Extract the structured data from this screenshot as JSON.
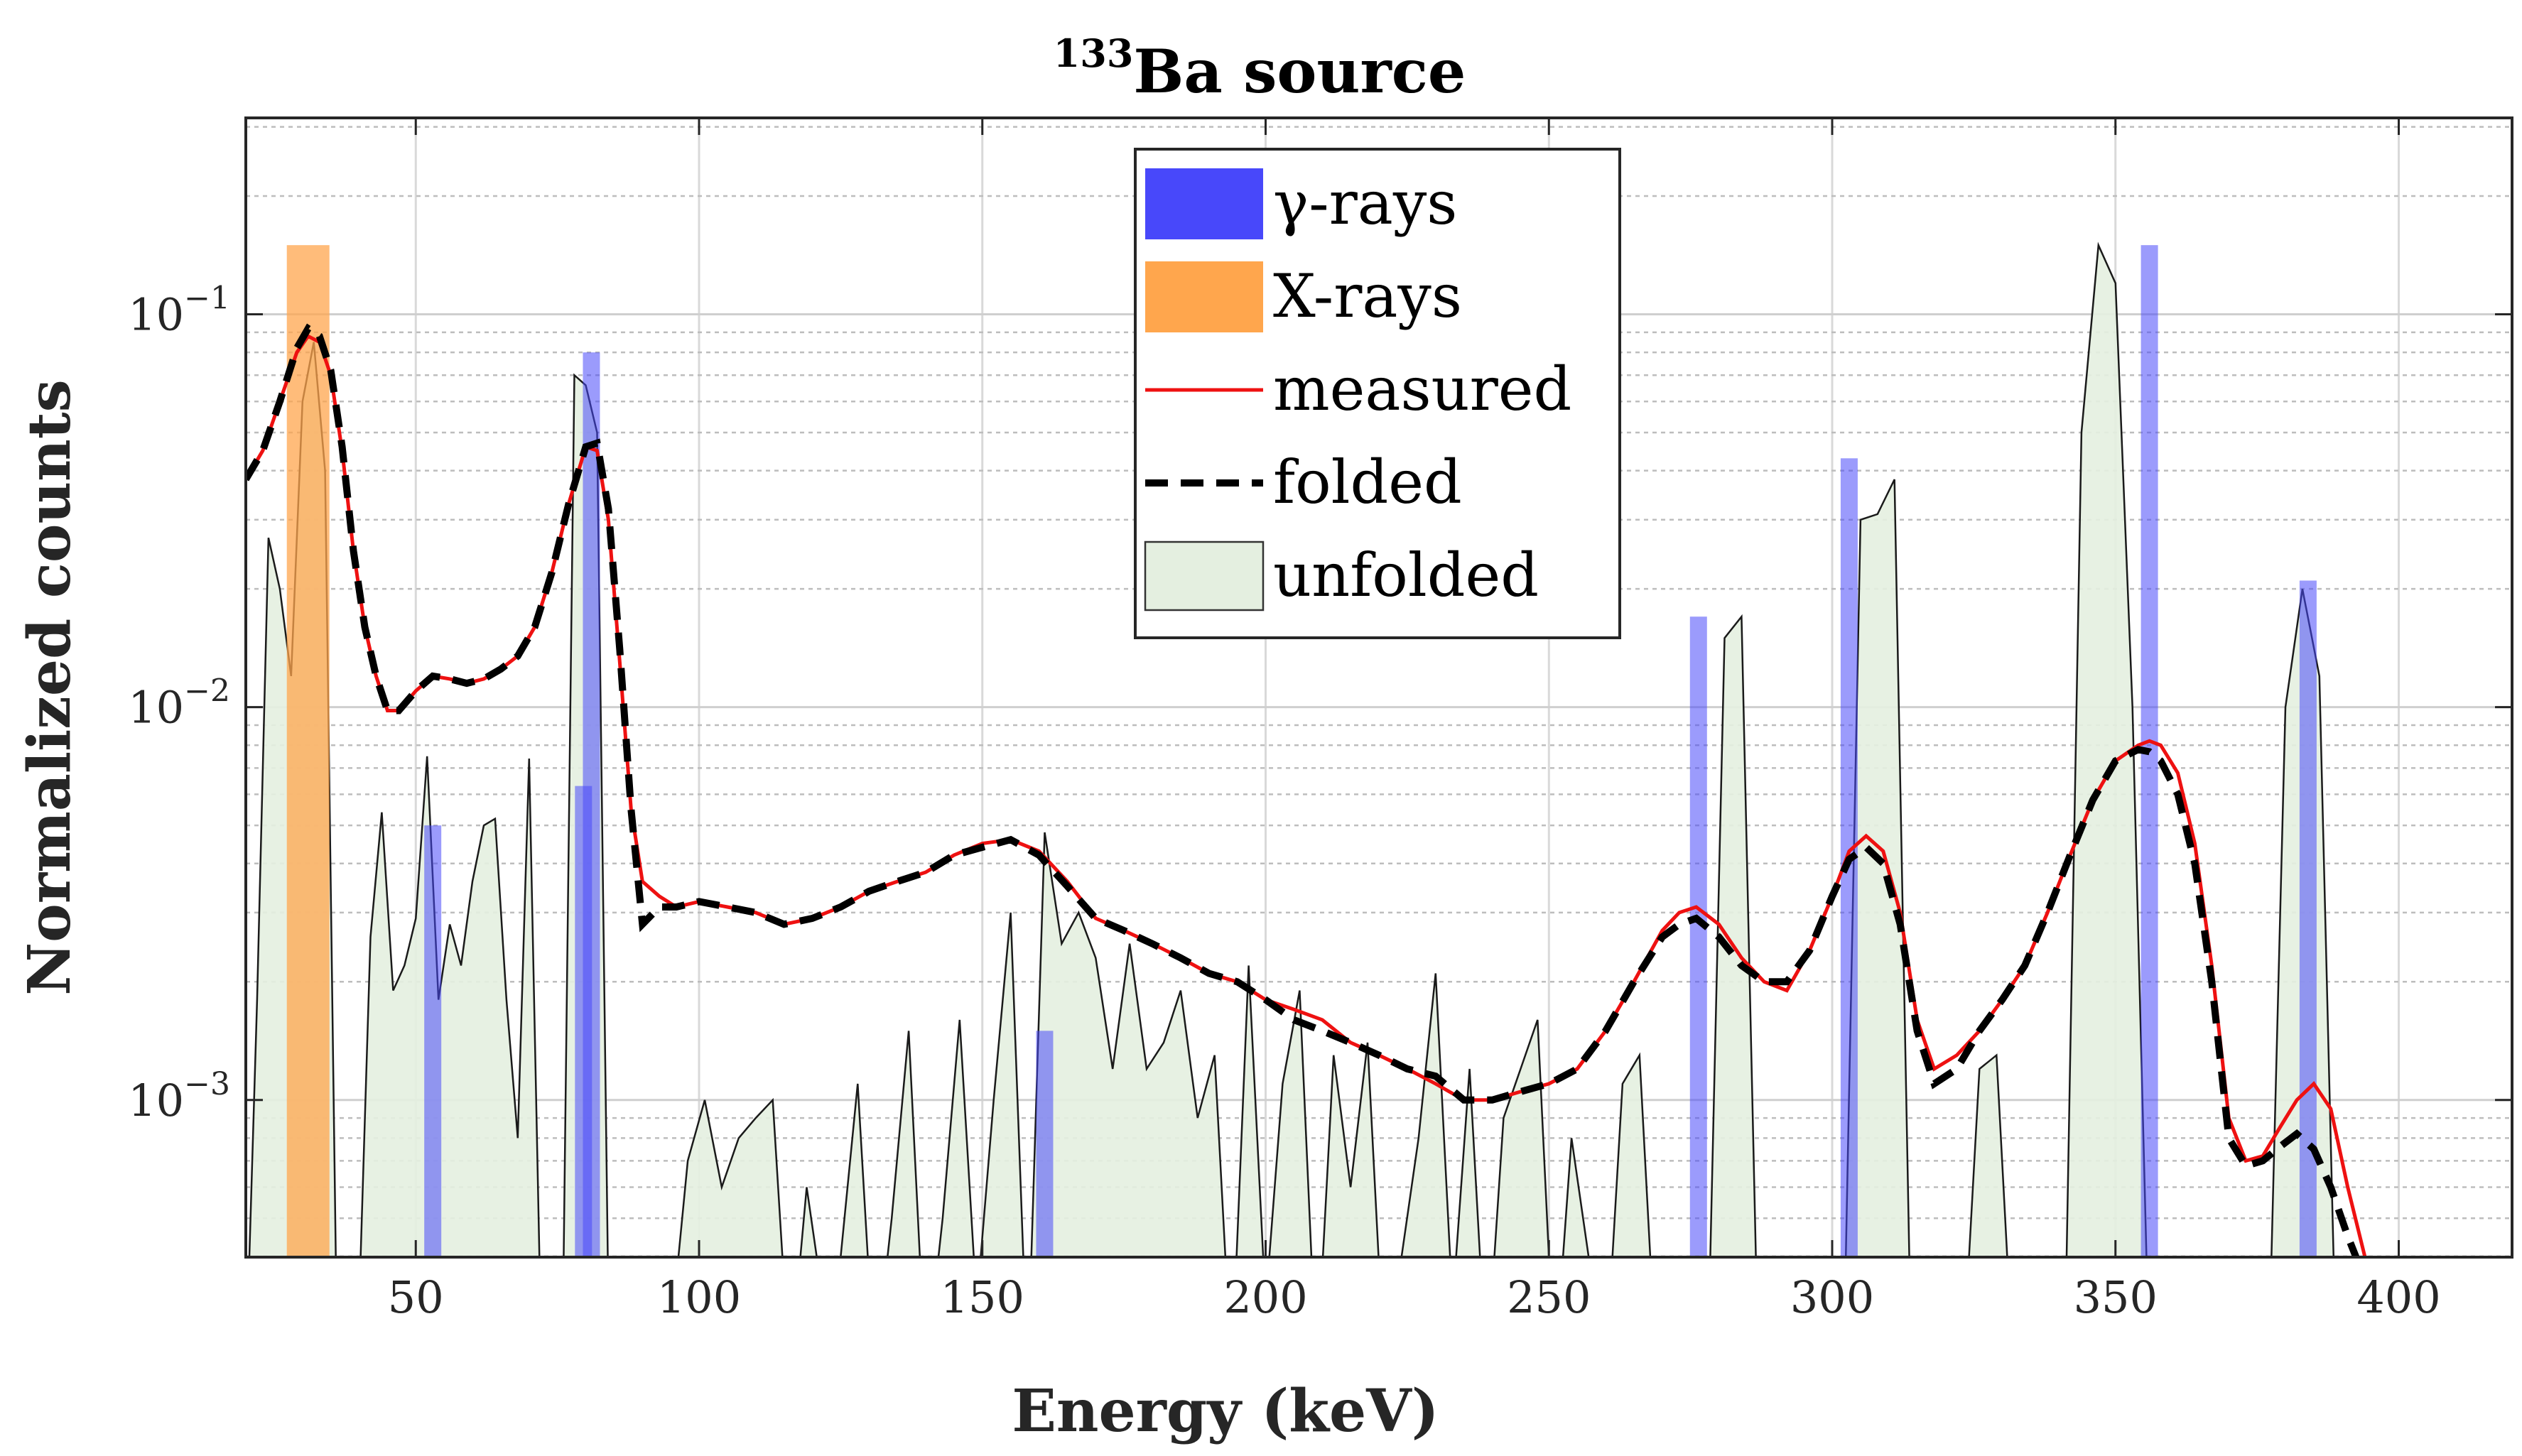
{
  "chart_data": {
    "type": "area",
    "title": "Ba source",
    "title_superscript": "133",
    "xlabel": "Energy (keV)",
    "ylabel": "Normalized counts",
    "xlim": [
      20,
      420
    ],
    "ylim_log10": [
      -3.4,
      -0.5
    ],
    "x_ticks": [
      50,
      100,
      150,
      200,
      250,
      300,
      350,
      400
    ],
    "x_tick_labels": [
      "50",
      "100",
      "150",
      "200",
      "250",
      "300",
      "350",
      "400"
    ],
    "y_ticks": [
      {
        "value": 0.1,
        "base": "10",
        "exp": "−1"
      },
      {
        "value": 0.01,
        "base": "10",
        "exp": "−2"
      },
      {
        "value": 0.001,
        "base": "10",
        "exp": "−3"
      }
    ],
    "grid": true,
    "legend_position": "top-center",
    "legend": [
      {
        "key": "gamma",
        "label": "γ-rays",
        "style": "bar",
        "color": "#4848fa"
      },
      {
        "key": "xray",
        "label": "X-rays",
        "style": "bar",
        "color": "#ffa64d"
      },
      {
        "key": "measured",
        "label": "measured",
        "style": "line",
        "color": "#ee1111"
      },
      {
        "key": "folded",
        "label": "folded",
        "style": "dashed",
        "color": "#000000"
      },
      {
        "key": "unfolded",
        "label": "unfolded",
        "style": "area",
        "color": "#e4efe0"
      }
    ],
    "gamma_lines": [
      {
        "x": 53,
        "y": 0.005
      },
      {
        "x": 79.6,
        "y": 0.0063
      },
      {
        "x": 81,
        "y": 0.08
      },
      {
        "x": 161,
        "y": 0.0015
      },
      {
        "x": 276.4,
        "y": 0.017
      },
      {
        "x": 303,
        "y": 0.043
      },
      {
        "x": 356,
        "y": 0.15
      },
      {
        "x": 384,
        "y": 0.021
      }
    ],
    "xray_lines": [
      {
        "x": 31,
        "y": 0.15
      }
    ],
    "measured": {
      "x": [
        20,
        23,
        26,
        29,
        31,
        33,
        35,
        37,
        39,
        41,
        43,
        45,
        47,
        50,
        53,
        56,
        59,
        62,
        65,
        68,
        71,
        74,
        77,
        80,
        82,
        84,
        86,
        88,
        90,
        93,
        96,
        100,
        105,
        110,
        115,
        120,
        125,
        130,
        135,
        140,
        145,
        150,
        155,
        160,
        165,
        170,
        175,
        180,
        185,
        190,
        195,
        200,
        205,
        210,
        215,
        220,
        225,
        230,
        235,
        240,
        245,
        250,
        255,
        260,
        265,
        270,
        273,
        276,
        280,
        284,
        288,
        292,
        296,
        300,
        303,
        306,
        309,
        312,
        315,
        318,
        322,
        326,
        330,
        334,
        338,
        342,
        346,
        350,
        354,
        356,
        358,
        361,
        364,
        367,
        370,
        373,
        376,
        379,
        382,
        385,
        388,
        391,
        394
      ],
      "y": [
        0.038,
        0.045,
        0.06,
        0.08,
        0.088,
        0.085,
        0.07,
        0.045,
        0.025,
        0.016,
        0.012,
        0.0098,
        0.0098,
        0.011,
        0.012,
        0.0118,
        0.0115,
        0.0118,
        0.0125,
        0.0135,
        0.016,
        0.022,
        0.033,
        0.046,
        0.045,
        0.03,
        0.013,
        0.0055,
        0.0036,
        0.0033,
        0.0031,
        0.0032,
        0.0031,
        0.003,
        0.0028,
        0.0029,
        0.0031,
        0.0034,
        0.0036,
        0.0038,
        0.0042,
        0.0045,
        0.0046,
        0.0043,
        0.0036,
        0.0029,
        0.0027,
        0.0025,
        0.0023,
        0.0021,
        0.002,
        0.0018,
        0.0017,
        0.0016,
        0.0014,
        0.0013,
        0.0012,
        0.0011,
        0.001,
        0.001,
        0.00105,
        0.0011,
        0.0012,
        0.0015,
        0.002,
        0.0027,
        0.003,
        0.0031,
        0.0028,
        0.0023,
        0.002,
        0.0019,
        0.0024,
        0.0033,
        0.0043,
        0.0047,
        0.0043,
        0.003,
        0.0016,
        0.0012,
        0.0013,
        0.0015,
        0.0018,
        0.0022,
        0.003,
        0.0042,
        0.0058,
        0.0073,
        0.008,
        0.0082,
        0.008,
        0.0068,
        0.0045,
        0.0022,
        0.0009,
        0.0007,
        0.00072,
        0.00085,
        0.001,
        0.0011,
        0.00095,
        0.0006,
        0.0004
      ]
    },
    "folded": {
      "x": [
        20,
        23,
        26,
        29,
        31,
        33,
        35,
        37,
        39,
        41,
        43,
        45,
        47,
        50,
        53,
        56,
        59,
        62,
        65,
        68,
        71,
        74,
        77,
        80,
        82,
        84,
        86,
        88,
        90,
        93,
        96,
        100,
        105,
        110,
        115,
        120,
        125,
        130,
        135,
        140,
        145,
        150,
        155,
        160,
        165,
        170,
        175,
        180,
        185,
        190,
        195,
        200,
        205,
        210,
        215,
        220,
        225,
        230,
        235,
        240,
        245,
        250,
        255,
        260,
        265,
        270,
        273,
        276,
        280,
        284,
        288,
        292,
        296,
        300,
        303,
        306,
        309,
        312,
        315,
        318,
        322,
        326,
        330,
        334,
        338,
        342,
        346,
        350,
        354,
        356,
        358,
        361,
        364,
        367,
        370,
        373,
        376,
        379,
        382,
        385,
        388,
        391,
        394
      ],
      "y": [
        0.038,
        0.045,
        0.06,
        0.082,
        0.092,
        0.088,
        0.072,
        0.046,
        0.025,
        0.016,
        0.012,
        0.0098,
        0.0098,
        0.011,
        0.012,
        0.0118,
        0.0115,
        0.0118,
        0.0125,
        0.0135,
        0.016,
        0.022,
        0.033,
        0.046,
        0.047,
        0.032,
        0.014,
        0.0055,
        0.0028,
        0.0031,
        0.0031,
        0.0032,
        0.0031,
        0.003,
        0.0028,
        0.0029,
        0.0031,
        0.0034,
        0.0036,
        0.0038,
        0.0042,
        0.0044,
        0.0046,
        0.0042,
        0.0035,
        0.0029,
        0.0027,
        0.0025,
        0.0023,
        0.0021,
        0.002,
        0.0018,
        0.0016,
        0.0015,
        0.0014,
        0.0013,
        0.0012,
        0.00115,
        0.001,
        0.001,
        0.00105,
        0.0011,
        0.0012,
        0.0015,
        0.002,
        0.0026,
        0.0028,
        0.0029,
        0.0026,
        0.0022,
        0.002,
        0.002,
        0.0024,
        0.0033,
        0.0041,
        0.0044,
        0.004,
        0.0028,
        0.0015,
        0.0011,
        0.0012,
        0.0015,
        0.0018,
        0.0022,
        0.003,
        0.0042,
        0.0058,
        0.0073,
        0.0078,
        0.0077,
        0.0073,
        0.006,
        0.004,
        0.002,
        0.0008,
        0.00068,
        0.0007,
        0.00076,
        0.00082,
        0.00075,
        0.0006,
        0.00045,
        0.00035
      ]
    },
    "unfolded": {
      "x": [
        20,
        22,
        24,
        26,
        28,
        30,
        32,
        34,
        36,
        38,
        40,
        42,
        44,
        46,
        48,
        50,
        52,
        54,
        56,
        58,
        60,
        62,
        64,
        66,
        68,
        70,
        72,
        74,
        76,
        78,
        80,
        82,
        84,
        86,
        88,
        90,
        92,
        95,
        98,
        101,
        104,
        107,
        110,
        113,
        116,
        119,
        122,
        125,
        128,
        131,
        134,
        137,
        140,
        143,
        146,
        149,
        152,
        155,
        158,
        161,
        164,
        167,
        170,
        173,
        176,
        179,
        182,
        185,
        188,
        191,
        194,
        197,
        200,
        203,
        206,
        209,
        212,
        215,
        218,
        221,
        224,
        227,
        230,
        233,
        236,
        239,
        242,
        245,
        248,
        251,
        254,
        257,
        260,
        263,
        266,
        269,
        272,
        275,
        278,
        281,
        284,
        287,
        290,
        293,
        296,
        299,
        302,
        305,
        308,
        311,
        314,
        317,
        320,
        323,
        326,
        329,
        332,
        335,
        338,
        341,
        344,
        347,
        350,
        353,
        356,
        359,
        362,
        365,
        368,
        371,
        374,
        377,
        380,
        383,
        386,
        389,
        392,
        395
      ],
      "y": [
        0.0002,
        0.0018,
        0.027,
        0.02,
        0.012,
        0.06,
        0.085,
        0.04,
        0.0003,
        0.0002,
        0.0003,
        0.0026,
        0.0054,
        0.0019,
        0.0022,
        0.0029,
        0.0075,
        0.0018,
        0.0028,
        0.0022,
        0.0036,
        0.005,
        0.0052,
        0.0018,
        0.0008,
        0.0074,
        0.0003,
        0.0002,
        0.0003,
        0.07,
        0.066,
        0.05,
        0.0003,
        0.0002,
        0.0002,
        0.0002,
        0.0002,
        0.00025,
        0.0007,
        0.001,
        0.0006,
        0.0008,
        0.0009,
        0.001,
        0.0002,
        0.0006,
        0.0003,
        0.0004,
        0.0011,
        0.0002,
        0.0005,
        0.0015,
        0.0002,
        0.0005,
        0.0016,
        0.0003,
        0.001,
        0.003,
        0.0002,
        0.0048,
        0.0025,
        0.003,
        0.0023,
        0.0012,
        0.0025,
        0.0012,
        0.0014,
        0.0019,
        0.0009,
        0.0013,
        0.0002,
        0.0022,
        0.0003,
        0.0011,
        0.0019,
        0.0002,
        0.0013,
        0.0006,
        0.0014,
        0.0002,
        0.0004,
        0.0008,
        0.0021,
        0.0003,
        0.0012,
        0.0002,
        0.0009,
        0.0012,
        0.0016,
        0.0002,
        0.0008,
        0.0004,
        0.0002,
        0.0011,
        0.0013,
        0.0002,
        0.0002,
        0.0002,
        0.0002,
        0.015,
        0.017,
        0.0002,
        0.0002,
        0.0002,
        0.0002,
        0.0002,
        0.0002,
        0.03,
        0.031,
        0.038,
        0.0002,
        0.0002,
        0.0002,
        0.0002,
        0.0012,
        0.0013,
        0.0002,
        0.0002,
        0.0002,
        0.0002,
        0.05,
        0.15,
        0.12,
        0.01,
        0.0002,
        0.0002,
        0.0002,
        0.0002,
        0.0002,
        0.0002,
        0.0002,
        0.0002,
        0.01,
        0.02,
        0.012,
        0.0002,
        0.0002,
        0.0002
      ]
    }
  }
}
